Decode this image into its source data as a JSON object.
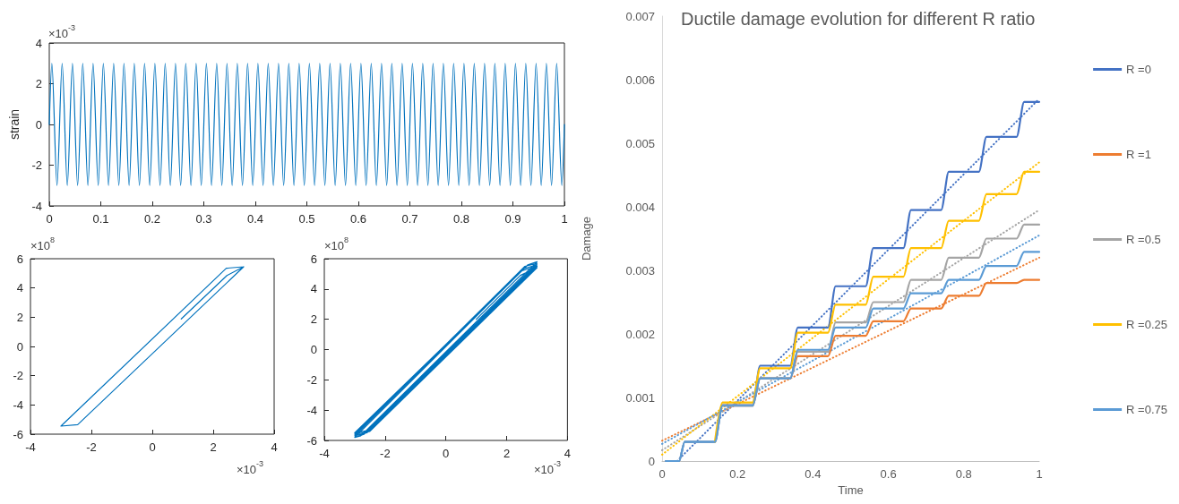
{
  "chart_data": [
    {
      "type": "line",
      "ylabel": "strain",
      "annotations": [
        "×10$^{-3}$"
      ],
      "marker": "none",
      "line_style": "solid",
      "xlim": [
        0,
        1
      ],
      "xticks": [
        0,
        0.1,
        0.2,
        0.3,
        0.4,
        0.5,
        0.6,
        0.7,
        0.8,
        0.9,
        1
      ],
      "ylim": [
        -4,
        4
      ],
      "yticks": [
        -4,
        -2,
        0,
        2,
        4
      ],
      "x": [
        0,
        0.005,
        0.015,
        0.025,
        0.035,
        0.045,
        0.055,
        0.065,
        0.075,
        0.085,
        0.095,
        0.105,
        0.115,
        0.125,
        0.135,
        0.145,
        0.155,
        0.165,
        0.175,
        0.185,
        0.195,
        0.205,
        0.215,
        0.225,
        0.235,
        0.245,
        0.255,
        0.265,
        0.275,
        0.285,
        0.295,
        0.305,
        0.315,
        0.325,
        0.335,
        0.345,
        0.355,
        0.365,
        0.375,
        0.385,
        0.395,
        0.405,
        0.415,
        0.425,
        0.435,
        0.445,
        0.455,
        0.465,
        0.475,
        0.485,
        0.495,
        0.505,
        0.515,
        0.525,
        0.535,
        0.545,
        0.555,
        0.565,
        0.575,
        0.585,
        0.595,
        0.605,
        0.615,
        0.625,
        0.635,
        0.645,
        0.655,
        0.665,
        0.675,
        0.685,
        0.695,
        0.705,
        0.715,
        0.725,
        0.735,
        0.745,
        0.755,
        0.765,
        0.775,
        0.785,
        0.795,
        0.805,
        0.815,
        0.825,
        0.835,
        0.845,
        0.855,
        0.865,
        0.875,
        0.885,
        0.895,
        0.905,
        0.915,
        0.925,
        0.935,
        0.945,
        0.955,
        0.965,
        0.975,
        0.985,
        0.995,
        1
      ],
      "series": [
        {
          "color": "#0072bd",
          "values": [
            0,
            3,
            -3,
            3,
            -3,
            3,
            -3,
            3,
            -3,
            3,
            -3,
            3,
            -3,
            3,
            -3,
            3,
            -3,
            3,
            -3,
            3,
            -3,
            3,
            -3,
            3,
            -3,
            3,
            -3,
            3,
            -3,
            3,
            -3,
            3,
            -3,
            3,
            -3,
            3,
            -3,
            3,
            -3,
            3,
            -3,
            3,
            -3,
            3,
            -3,
            3,
            -3,
            3,
            -3,
            3,
            -3,
            3,
            -3,
            3,
            -3,
            3,
            -3,
            3,
            -3,
            3,
            -3,
            3,
            -3,
            3,
            -3,
            3,
            -3,
            3,
            -3,
            3,
            -3,
            3,
            -3,
            3,
            -3,
            3,
            -3,
            3,
            -3,
            3,
            -3,
            3,
            -3,
            3,
            -3,
            3,
            -3,
            3,
            -3,
            3,
            -3,
            3,
            -3,
            3,
            -3,
            3,
            -3,
            3,
            -3,
            3,
            -3,
            0
          ]
        }
      ]
    },
    {
      "type": "line",
      "annotations": [
        "×10$^{8}$",
        "×10$^{-3}$"
      ],
      "marker": "none",
      "line_style": "solid",
      "xlim": [
        -4,
        4
      ],
      "xticks": [
        -4,
        -2,
        0,
        2,
        4
      ],
      "ylim": [
        -6,
        6
      ],
      "yticks": [
        -6,
        -4,
        -2,
        0,
        2,
        4,
        6
      ],
      "series": [
        {
          "color": "#0072bd",
          "x": [
            0.95,
            2.45,
            3,
            -2.45,
            -3,
            2.43,
            3
          ],
          "values": [
            1.88,
            4.85,
            5.45,
            -5.35,
            -5.45,
            5.35,
            5.45
          ]
        }
      ]
    },
    {
      "type": "line",
      "annotations": [
        "×10$^{8}$",
        "×10$^{-3}$"
      ],
      "marker": "none",
      "line_style": "solid",
      "xlim": [
        -4,
        4
      ],
      "xticks": [
        -4,
        -2,
        0,
        2,
        4
      ],
      "ylim": [
        -6,
        6
      ],
      "yticks": [
        -6,
        -4,
        -2,
        0,
        2,
        4,
        6
      ],
      "series": [
        {
          "color": "#0072bd",
          "x": [
            1,
            2.45,
            3,
            -2.45,
            -3,
            2.5,
            3,
            -2.5,
            -3,
            2.5,
            3,
            -2.6,
            -3,
            2.6,
            3,
            -2.7,
            -3,
            2.7,
            3,
            -2.8,
            -3
          ],
          "values": [
            2,
            4.9,
            5.4,
            -5.3,
            -5.5,
            5.2,
            5.5,
            -5.4,
            -5.6,
            5.3,
            5.6,
            -5.5,
            -5.7,
            5.5,
            5.7,
            -5.6,
            -5.8,
            5.6,
            5.8,
            -5.7,
            -5.8
          ]
        }
      ]
    },
    {
      "type": "line",
      "title": "Ductile damage evolution for different R ratio",
      "xlabel": "Time",
      "ylabel": "Damage",
      "legend": "right",
      "marker": "none",
      "line_style": "solid",
      "xlim": [
        0,
        1
      ],
      "xticks": [
        0,
        0.2,
        0.4,
        0.6,
        0.8,
        1
      ],
      "ylim": [
        0,
        0.007
      ],
      "yticks": [
        0,
        0.001,
        0.002,
        0.003,
        0.004,
        0.005,
        0.006,
        0.007
      ],
      "x": [
        0.01,
        0.045,
        0.06,
        0.14,
        0.16,
        0.24,
        0.26,
        0.34,
        0.36,
        0.44,
        0.46,
        0.54,
        0.56,
        0.64,
        0.66,
        0.74,
        0.76,
        0.84,
        0.86,
        0.94,
        0.96,
        1
      ],
      "series": [
        {
          "name": "R =0",
          "color": "#4472c4",
          "values": [
            0,
            0,
            0.0003,
            0.0003,
            0.00088,
            0.00088,
            0.0015,
            0.0015,
            0.0021,
            0.0021,
            0.00275,
            0.00275,
            0.00335,
            0.00335,
            0.00395,
            0.00395,
            0.00455,
            0.00455,
            0.0051,
            0.0051,
            0.00565,
            0.00565
          ]
        },
        {
          "name": "R =1",
          "color": "#ed7d31",
          "values": [
            null,
            null,
            null,
            null,
            0.00087,
            0.00087,
            0.0013,
            0.0013,
            0.00165,
            0.00165,
            0.00197,
            0.00197,
            0.0022,
            0.0022,
            0.0024,
            0.0024,
            0.0026,
            0.0026,
            0.0028,
            0.0028,
            0.00285,
            0.00285
          ]
        },
        {
          "name": "R =0.5",
          "color": "#a5a5a5",
          "values": [
            0,
            0,
            0.0003,
            0.0003,
            0.00088,
            0.00088,
            0.0013,
            0.0013,
            0.00172,
            0.00172,
            0.00218,
            0.00218,
            0.0025,
            0.0025,
            0.00285,
            0.00285,
            0.0032,
            0.0032,
            0.0035,
            0.0035,
            0.00372,
            0.00372
          ]
        },
        {
          "name": "R =0.25",
          "color": "#ffc000",
          "values": [
            null,
            null,
            null,
            0.0003,
            0.00092,
            0.00092,
            0.00146,
            0.00146,
            0.00202,
            0.00202,
            0.00246,
            0.00246,
            0.0029,
            0.0029,
            0.00335,
            0.00335,
            0.00378,
            0.00378,
            0.0042,
            0.0042,
            0.00455,
            0.00455
          ]
        },
        {
          "name": "R =0.75",
          "color": "#5b9bd5",
          "values": [
            0,
            0,
            0.0003,
            0.0003,
            0.00087,
            0.00087,
            0.0013,
            0.0013,
            0.00175,
            0.00175,
            0.0021,
            0.0021,
            0.0024,
            0.0024,
            0.00264,
            0.00264,
            0.00285,
            0.00285,
            0.00307,
            0.00307,
            0.00329,
            0.00329
          ]
        },
        {
          "type": "line",
          "color": "#4472c4",
          "line_style": "dotted",
          "x": [
            0.04,
            1
          ],
          "values": [
            0,
            0.0057
          ]
        },
        {
          "type": "line",
          "color": "#ed7d31",
          "line_style": "dotted",
          "x": [
            0,
            1
          ],
          "values": [
            0.00032,
            0.0032
          ]
        },
        {
          "type": "line",
          "color": "#a5a5a5",
          "line_style": "dotted",
          "x": [
            0,
            1
          ],
          "values": [
            0.00017,
            0.00395
          ]
        },
        {
          "type": "line",
          "color": "#ffc000",
          "line_style": "dotted",
          "x": [
            0,
            1
          ],
          "values": [
            0.0001,
            0.0047
          ]
        },
        {
          "type": "line",
          "color": "#5b9bd5",
          "line_style": "dotted",
          "x": [
            0,
            1
          ],
          "values": [
            0.00027,
            0.00355
          ]
        }
      ]
    }
  ]
}
